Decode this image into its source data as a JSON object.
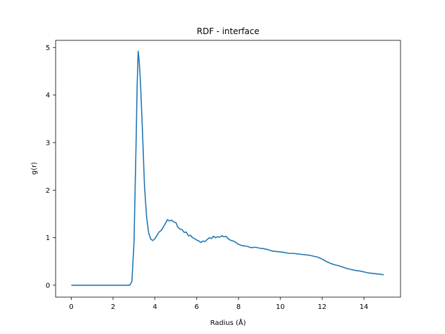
{
  "chart_data": {
    "type": "line",
    "title": "RDF - interface",
    "xlabel": "Radius (Å)",
    "ylabel": "g(r)",
    "xlim": [
      -0.75,
      15.75
    ],
    "ylim": [
      -0.25,
      5.15
    ],
    "xticks": [
      0,
      2,
      4,
      6,
      8,
      10,
      12,
      14
    ],
    "yticks": [
      0,
      1,
      2,
      3,
      4,
      5
    ],
    "grid": false,
    "legend": "none",
    "colors": {
      "line": "#1f77b4"
    },
    "series": [
      {
        "x": [
          0.0,
          0.5,
          1.0,
          1.5,
          2.0,
          2.5,
          2.8,
          2.9,
          3.0,
          3.1,
          3.15,
          3.2,
          3.25,
          3.3,
          3.4,
          3.5,
          3.6,
          3.7,
          3.8,
          3.9,
          4.0,
          4.1,
          4.2,
          4.3,
          4.4,
          4.5,
          4.6,
          4.7,
          4.8,
          4.9,
          5.0,
          5.1,
          5.2,
          5.3,
          5.4,
          5.5,
          5.6,
          5.7,
          5.8,
          5.9,
          6.0,
          6.1,
          6.2,
          6.3,
          6.4,
          6.5,
          6.6,
          6.7,
          6.8,
          6.9,
          7.0,
          7.1,
          7.2,
          7.3,
          7.4,
          7.5,
          7.6,
          7.8,
          8.0,
          8.2,
          8.4,
          8.6,
          8.8,
          9.0,
          9.2,
          9.4,
          9.6,
          9.8,
          10.0,
          10.2,
          10.4,
          10.6,
          10.8,
          11.0,
          11.2,
          11.4,
          11.6,
          11.8,
          12.0,
          12.2,
          12.4,
          12.6,
          12.8,
          13.0,
          13.2,
          13.4,
          13.6,
          13.8,
          14.0,
          14.2,
          14.4,
          14.6,
          14.8,
          14.95
        ],
        "y": [
          0.0,
          0.0,
          0.0,
          0.0,
          0.0,
          0.0,
          0.0,
          0.08,
          0.9,
          3.0,
          4.2,
          4.92,
          4.7,
          4.35,
          3.3,
          2.1,
          1.45,
          1.1,
          0.97,
          0.94,
          0.98,
          1.05,
          1.12,
          1.15,
          1.22,
          1.3,
          1.38,
          1.35,
          1.37,
          1.33,
          1.32,
          1.22,
          1.18,
          1.17,
          1.11,
          1.12,
          1.04,
          1.05,
          1.0,
          0.98,
          0.95,
          0.93,
          0.9,
          0.93,
          0.92,
          0.96,
          1.0,
          0.98,
          1.03,
          1.0,
          1.02,
          1.01,
          1.04,
          1.02,
          1.03,
          0.98,
          0.95,
          0.92,
          0.86,
          0.83,
          0.82,
          0.79,
          0.8,
          0.78,
          0.77,
          0.75,
          0.72,
          0.71,
          0.7,
          0.69,
          0.67,
          0.67,
          0.66,
          0.65,
          0.64,
          0.63,
          0.61,
          0.59,
          0.55,
          0.5,
          0.46,
          0.43,
          0.41,
          0.38,
          0.35,
          0.33,
          0.31,
          0.3,
          0.28,
          0.26,
          0.25,
          0.24,
          0.23,
          0.22
        ]
      }
    ]
  }
}
